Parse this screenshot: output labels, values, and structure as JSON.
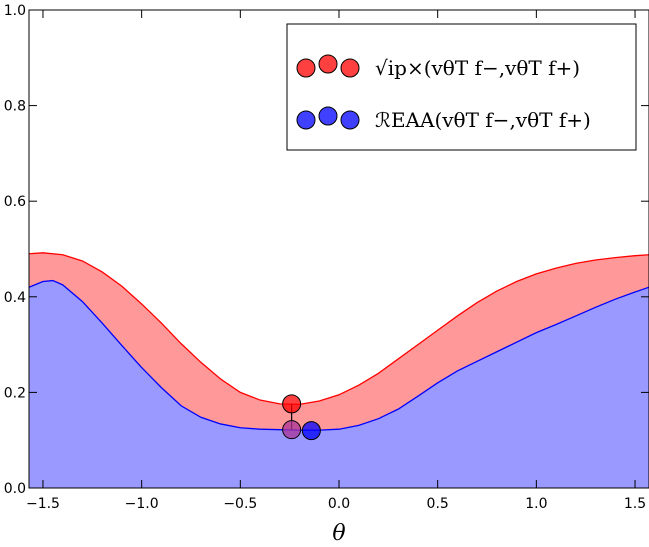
{
  "chart_data": {
    "type": "area",
    "xlabel": "θ",
    "ylabel": "",
    "xlim": [
      -1.5708,
      1.5708
    ],
    "ylim": [
      0.0,
      1.0
    ],
    "x_ticks": [
      -1.5,
      -1.0,
      -0.5,
      0.0,
      0.5,
      1.0,
      1.5
    ],
    "x_tick_labels": [
      "−1.5",
      "−1.0",
      "−0.5",
      "0.0",
      "0.5",
      "1.0",
      "1.5"
    ],
    "y_ticks": [
      0.0,
      0.2,
      0.4,
      0.6,
      0.8,
      1.0
    ],
    "y_tick_labels": [
      "0.0",
      "0.2",
      "0.4",
      "0.6",
      "0.8",
      "1.0"
    ],
    "legend_position": "top-right",
    "series": [
      {
        "name": "√ip×(vθT f−,vθT f+)",
        "color": "#ff0000",
        "fill": "#ff9999",
        "x": [
          -1.5708,
          -1.5,
          -1.4,
          -1.3,
          -1.2,
          -1.1,
          -1.0,
          -0.9,
          -0.8,
          -0.7,
          -0.6,
          -0.5,
          -0.4,
          -0.3,
          -0.2,
          -0.1,
          0.0,
          0.1,
          0.2,
          0.3,
          0.4,
          0.5,
          0.6,
          0.7,
          0.8,
          0.9,
          1.0,
          1.1,
          1.2,
          1.3,
          1.4,
          1.5,
          1.5708
        ],
        "y": [
          0.49,
          0.492,
          0.488,
          0.475,
          0.452,
          0.422,
          0.385,
          0.345,
          0.302,
          0.263,
          0.228,
          0.2,
          0.184,
          0.176,
          0.175,
          0.182,
          0.195,
          0.215,
          0.24,
          0.27,
          0.3,
          0.33,
          0.36,
          0.388,
          0.412,
          0.432,
          0.448,
          0.46,
          0.47,
          0.477,
          0.482,
          0.486,
          0.488
        ]
      },
      {
        "name": "ℛEAA(vθT f−,vθT f+)",
        "color": "#0000ff",
        "fill": "#9999ff",
        "x": [
          -1.5708,
          -1.5,
          -1.45,
          -1.4,
          -1.3,
          -1.2,
          -1.1,
          -1.0,
          -0.9,
          -0.8,
          -0.7,
          -0.6,
          -0.5,
          -0.4,
          -0.3,
          -0.2,
          -0.1,
          0.0,
          0.1,
          0.2,
          0.3,
          0.4,
          0.5,
          0.6,
          0.7,
          0.8,
          0.9,
          1.0,
          1.1,
          1.2,
          1.3,
          1.4,
          1.5,
          1.5708
        ],
        "y": [
          0.42,
          0.432,
          0.434,
          0.425,
          0.39,
          0.345,
          0.298,
          0.252,
          0.21,
          0.172,
          0.148,
          0.134,
          0.126,
          0.123,
          0.122,
          0.121,
          0.121,
          0.123,
          0.131,
          0.145,
          0.165,
          0.192,
          0.22,
          0.245,
          0.265,
          0.285,
          0.305,
          0.325,
          0.342,
          0.36,
          0.378,
          0.395,
          0.41,
          0.42
        ]
      }
    ],
    "markers": [
      {
        "x": -0.24,
        "y": 0.176,
        "color": "#ff0000"
      },
      {
        "x": -0.24,
        "y": 0.122,
        "color": "#aa3399"
      },
      {
        "x": -0.14,
        "y": 0.12,
        "color": "#0000ff"
      }
    ],
    "marker_link": {
      "x": -0.24,
      "y0": 0.122,
      "y1": 0.176
    }
  }
}
